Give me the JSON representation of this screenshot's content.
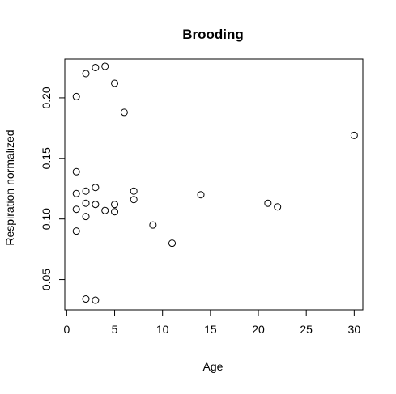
{
  "chart_data": {
    "type": "scatter",
    "title": "Brooding",
    "xlabel": "Age",
    "ylabel": "Respiration normalized",
    "xlim": [
      -0.2,
      30.9
    ],
    "ylim": [
      0.025,
      0.232
    ],
    "xticks": [
      0,
      5,
      10,
      15,
      20,
      25,
      30
    ],
    "yticks": [
      0.05,
      0.1,
      0.15,
      0.2
    ],
    "ytick_labels": [
      "0.05",
      "0.10",
      "0.15",
      "0.20"
    ],
    "grid": false,
    "points": [
      {
        "x": 1,
        "y": 0.201
      },
      {
        "x": 2,
        "y": 0.22
      },
      {
        "x": 3,
        "y": 0.225
      },
      {
        "x": 4,
        "y": 0.226
      },
      {
        "x": 5,
        "y": 0.212
      },
      {
        "x": 6,
        "y": 0.188
      },
      {
        "x": 1,
        "y": 0.139
      },
      {
        "x": 1,
        "y": 0.121
      },
      {
        "x": 2,
        "y": 0.123
      },
      {
        "x": 3,
        "y": 0.126
      },
      {
        "x": 1,
        "y": 0.108
      },
      {
        "x": 2,
        "y": 0.113
      },
      {
        "x": 3,
        "y": 0.112
      },
      {
        "x": 2,
        "y": 0.102
      },
      {
        "x": 4,
        "y": 0.107
      },
      {
        "x": 5,
        "y": 0.112
      },
      {
        "x": 5,
        "y": 0.106
      },
      {
        "x": 1,
        "y": 0.09
      },
      {
        "x": 7,
        "y": 0.123
      },
      {
        "x": 7,
        "y": 0.116
      },
      {
        "x": 9,
        "y": 0.095
      },
      {
        "x": 11,
        "y": 0.08
      },
      {
        "x": 14,
        "y": 0.12
      },
      {
        "x": 21,
        "y": 0.113
      },
      {
        "x": 22,
        "y": 0.11
      },
      {
        "x": 30,
        "y": 0.169
      },
      {
        "x": 2,
        "y": 0.034
      },
      {
        "x": 3,
        "y": 0.033
      }
    ]
  }
}
